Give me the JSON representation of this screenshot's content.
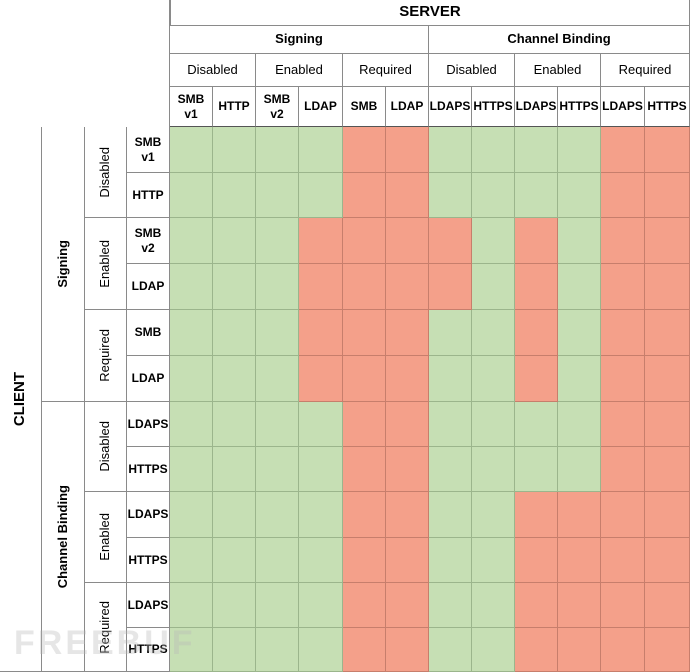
{
  "server": {
    "title": "SERVER",
    "groups": [
      "Signing",
      "Channel Binding"
    ],
    "modes": [
      "Disabled",
      "Enabled",
      "Required",
      "Disabled",
      "Enabled",
      "Required"
    ],
    "protocols": [
      "SMB\nv1",
      "HTTP",
      "SMB\nv2",
      "LDAP",
      "SMB",
      "LDAP",
      "LDAPS",
      "HTTPS",
      "LDAPS",
      "HTTPS",
      "LDAPS",
      "HTTPS"
    ]
  },
  "client": {
    "title": "CLIENT",
    "groups": [
      "Signing",
      "Channel Binding"
    ],
    "modes": [
      "Disabled",
      "Enabled",
      "Required",
      "Disabled",
      "Enabled",
      "Required"
    ],
    "protocols": [
      "SMB\nv1",
      "HTTP",
      "SMB\nv2",
      "LDAP",
      "SMB",
      "LDAP",
      "LDAPS",
      "HTTPS",
      "LDAPS",
      "HTTPS",
      "LDAPS",
      "HTTPS"
    ]
  },
  "matrix": [
    [
      "g",
      "g",
      "g",
      "g",
      "r",
      "r",
      "g",
      "g",
      "g",
      "g",
      "r",
      "r"
    ],
    [
      "g",
      "g",
      "g",
      "g",
      "r",
      "r",
      "g",
      "g",
      "g",
      "g",
      "r",
      "r"
    ],
    [
      "g",
      "g",
      "g",
      "r",
      "r",
      "r",
      "r",
      "g",
      "r",
      "g",
      "r",
      "r"
    ],
    [
      "g",
      "g",
      "g",
      "r",
      "r",
      "r",
      "r",
      "g",
      "r",
      "g",
      "r",
      "r"
    ],
    [
      "g",
      "g",
      "g",
      "r",
      "r",
      "r",
      "g",
      "g",
      "r",
      "g",
      "r",
      "r"
    ],
    [
      "g",
      "g",
      "g",
      "r",
      "r",
      "r",
      "g",
      "g",
      "r",
      "g",
      "r",
      "r"
    ],
    [
      "g",
      "g",
      "g",
      "g",
      "r",
      "r",
      "g",
      "g",
      "g",
      "g",
      "r",
      "r"
    ],
    [
      "g",
      "g",
      "g",
      "g",
      "r",
      "r",
      "g",
      "g",
      "g",
      "g",
      "r",
      "r"
    ],
    [
      "g",
      "g",
      "g",
      "g",
      "r",
      "r",
      "g",
      "g",
      "r",
      "r",
      "r",
      "r"
    ],
    [
      "g",
      "g",
      "g",
      "g",
      "r",
      "r",
      "g",
      "g",
      "r",
      "r",
      "r",
      "r"
    ],
    [
      "g",
      "g",
      "g",
      "g",
      "r",
      "r",
      "g",
      "g",
      "r",
      "r",
      "r",
      "r"
    ],
    [
      "g",
      "g",
      "g",
      "g",
      "r",
      "r",
      "g",
      "g",
      "r",
      "r",
      "r",
      "r"
    ]
  ],
  "colors": {
    "compatible": "#c6dfb4",
    "incompatible": "#f4a08a"
  },
  "watermark": "FREEBUF"
}
